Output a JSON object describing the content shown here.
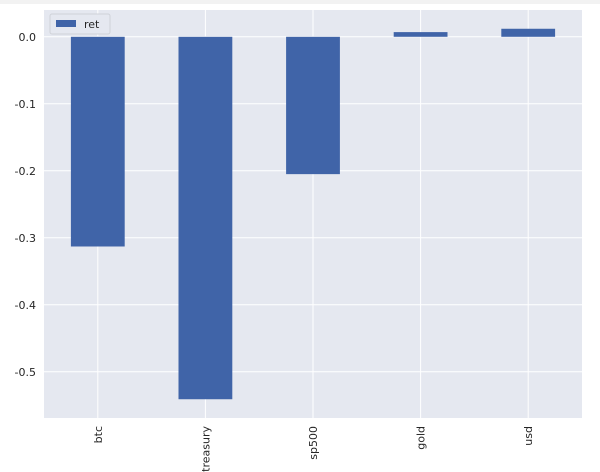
{
  "chart_data": {
    "type": "bar",
    "categories": [
      "btc",
      "treasury",
      "sp500",
      "gold",
      "usd"
    ],
    "series": [
      {
        "name": "ret",
        "values": [
          -0.313,
          -0.541,
          -0.205,
          0.007,
          0.012
        ]
      }
    ],
    "title": "",
    "xlabel": "",
    "ylabel": "",
    "ylim": [
      -0.569,
      0.04
    ],
    "yticks": [
      0.0,
      -0.1,
      -0.2,
      -0.3,
      -0.4,
      -0.5
    ],
    "ytick_labels": [
      "0.0",
      "-0.1",
      "-0.2",
      "-0.3",
      "-0.4",
      "-0.5"
    ],
    "grid": true,
    "legend": "top-left",
    "bar_color": "#4064a8",
    "background_color": "#e5e8f0"
  }
}
